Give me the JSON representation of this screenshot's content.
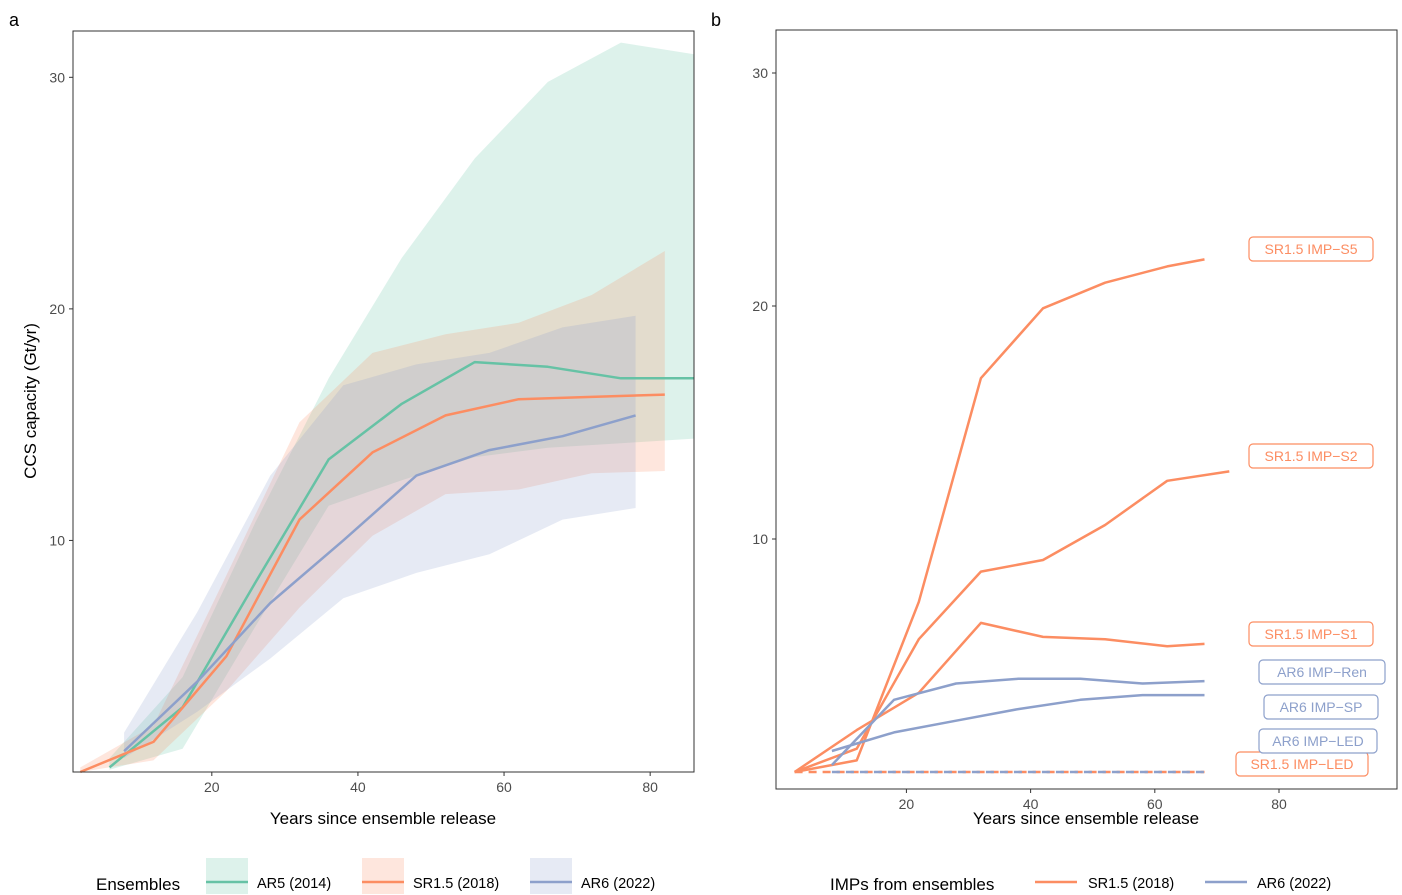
{
  "colors": {
    "AR5 (2014)": "#66c2a5",
    "SR1.5 (2018)": "#fc8d62",
    "AR6 (2022)": "#8da0cb"
  },
  "legend_a": {
    "title": "Ensembles",
    "items": [
      "AR5 (2014)",
      "SR1.5 (2018)",
      "AR6 (2022)"
    ]
  },
  "legend_b": {
    "title": "IMPs from ensembles",
    "items": [
      "SR1.5 (2018)",
      "AR6 (2022)"
    ]
  },
  "chart_data": [
    {
      "panel": "a",
      "type": "line",
      "xlabel": "Years since ensemble release",
      "ylabel": "CCS capacity (Gt/yr)",
      "xlim": [
        1,
        86
      ],
      "ylim": [
        0,
        32
      ],
      "xticks": [
        20,
        40,
        60,
        80
      ],
      "yticks": [
        10,
        20,
        30
      ],
      "grid": false,
      "legend_position": "bottom",
      "series": [
        {
          "name": "AR5 (2014)",
          "median": [
            [
              6,
              0.2
            ],
            [
              16,
              2.8
            ],
            [
              26,
              8.2
            ],
            [
              36,
              13.5
            ],
            [
              46,
              15.9
            ],
            [
              56,
              17.7
            ],
            [
              66,
              17.5
            ],
            [
              76,
              17.0
            ],
            [
              86,
              17.0
            ]
          ],
          "upper": [
            [
              6,
              0.6
            ],
            [
              16,
              4.1
            ],
            [
              26,
              10.8
            ],
            [
              36,
              17.0
            ],
            [
              46,
              22.2
            ],
            [
              56,
              26.5
            ],
            [
              66,
              29.8
            ],
            [
              76,
              31.5
            ],
            [
              86,
              31.0
            ]
          ],
          "lower": [
            [
              6,
              0.1
            ],
            [
              16,
              1.0
            ],
            [
              26,
              6.3
            ],
            [
              36,
              11.5
            ],
            [
              46,
              12.6
            ],
            [
              56,
              13.6
            ],
            [
              66,
              14.0
            ],
            [
              76,
              14.2
            ],
            [
              86,
              14.4
            ]
          ]
        },
        {
          "name": "SR1.5 (2018)",
          "median": [
            [
              2,
              0.0
            ],
            [
              12,
              1.3
            ],
            [
              22,
              5.0
            ],
            [
              32,
              10.9
            ],
            [
              42,
              13.8
            ],
            [
              52,
              15.4
            ],
            [
              62,
              16.1
            ],
            [
              72,
              16.2
            ],
            [
              82,
              16.3
            ]
          ],
          "upper": [
            [
              2,
              0.2
            ],
            [
              12,
              2.0
            ],
            [
              22,
              8.5
            ],
            [
              32,
              15.1
            ],
            [
              42,
              18.1
            ],
            [
              52,
              18.9
            ],
            [
              62,
              19.4
            ],
            [
              72,
              20.6
            ],
            [
              82,
              22.5
            ]
          ],
          "lower": [
            [
              2,
              0.0
            ],
            [
              12,
              0.5
            ],
            [
              22,
              3.5
            ],
            [
              32,
              7.1
            ],
            [
              42,
              10.2
            ],
            [
              52,
              12.0
            ],
            [
              62,
              12.2
            ],
            [
              72,
              12.9
            ],
            [
              82,
              13.0
            ]
          ]
        },
        {
          "name": "AR6 (2022)",
          "median": [
            [
              8,
              0.9
            ],
            [
              18,
              3.9
            ],
            [
              28,
              7.3
            ],
            [
              38,
              10.0
            ],
            [
              48,
              12.8
            ],
            [
              58,
              13.9
            ],
            [
              68,
              14.5
            ],
            [
              78,
              15.4
            ]
          ],
          "upper": [
            [
              8,
              1.7
            ],
            [
              18,
              6.9
            ],
            [
              28,
              12.8
            ],
            [
              38,
              16.7
            ],
            [
              48,
              17.6
            ],
            [
              58,
              18.1
            ],
            [
              68,
              19.2
            ],
            [
              78,
              19.7
            ]
          ],
          "lower": [
            [
              8,
              0.6
            ],
            [
              18,
              2.6
            ],
            [
              28,
              4.9
            ],
            [
              38,
              7.5
            ],
            [
              48,
              8.6
            ],
            [
              58,
              9.4
            ],
            [
              68,
              10.9
            ],
            [
              78,
              11.4
            ]
          ]
        }
      ]
    },
    {
      "panel": "b",
      "type": "line",
      "xlabel": "Years since ensemble release",
      "xlim": [
        -1,
        99
      ],
      "ylim": [
        0,
        32
      ],
      "xticks": [
        20,
        40,
        60,
        80
      ],
      "yticks": [
        10,
        20,
        30
      ],
      "grid": false,
      "legend_position": "bottom",
      "series": [
        {
          "name": "SR1.5 IMP-S5",
          "group": "SR1.5 (2018)",
          "label": "SR1.5 IMP−S5",
          "dashed": false,
          "points": [
            [
              2,
              0.0
            ],
            [
              12,
              0.5
            ],
            [
              22,
              7.3
            ],
            [
              32,
              16.9
            ],
            [
              42,
              19.9
            ],
            [
              52,
              21.0
            ],
            [
              62,
              21.7
            ],
            [
              68,
              22.0
            ]
          ]
        },
        {
          "name": "SR1.5 IMP-S2",
          "group": "SR1.5 (2018)",
          "label": "SR1.5 IMP−S2",
          "dashed": false,
          "points": [
            [
              2,
              0.0
            ],
            [
              12,
              1.0
            ],
            [
              22,
              5.7
            ],
            [
              32,
              8.6
            ],
            [
              42,
              9.1
            ],
            [
              52,
              10.6
            ],
            [
              62,
              12.5
            ],
            [
              72,
              12.9
            ]
          ]
        },
        {
          "name": "SR1.5 IMP-S1",
          "group": "SR1.5 (2018)",
          "label": "SR1.5 IMP−S1",
          "dashed": false,
          "points": [
            [
              2,
              0.0
            ],
            [
              12,
              1.8
            ],
            [
              22,
              3.4
            ],
            [
              32,
              6.4
            ],
            [
              42,
              5.8
            ],
            [
              52,
              5.7
            ],
            [
              62,
              5.4
            ],
            [
              68,
              5.5
            ]
          ]
        },
        {
          "name": "SR1.5 IMP-LED",
          "group": "SR1.5 (2018)",
          "label": "SR1.5 IMP−LED",
          "dashed": true,
          "points": [
            [
              2,
              0.0
            ],
            [
              68,
              0.0
            ]
          ]
        },
        {
          "name": "AR6 IMP-Ren",
          "group": "AR6 (2022)",
          "label": "AR6 IMP−Ren",
          "dashed": false,
          "points": [
            [
              8,
              0.3
            ],
            [
              18,
              3.1
            ],
            [
              28,
              3.8
            ],
            [
              38,
              4.0
            ],
            [
              48,
              4.0
            ],
            [
              58,
              3.8
            ],
            [
              68,
              3.9
            ]
          ]
        },
        {
          "name": "AR6 IMP-SP",
          "group": "AR6 (2022)",
          "label": "AR6 IMP−SP",
          "dashed": false,
          "points": [
            [
              8,
              0.9
            ],
            [
              18,
              1.7
            ],
            [
              28,
              2.2
            ],
            [
              38,
              2.7
            ],
            [
              48,
              3.1
            ],
            [
              58,
              3.3
            ],
            [
              68,
              3.3
            ]
          ]
        },
        {
          "name": "AR6 IMP-LED",
          "group": "AR6 (2022)",
          "label": "AR6 IMP−LED",
          "dashed": true,
          "points": [
            [
              8,
              0.0
            ],
            [
              68,
              0.0
            ]
          ]
        }
      ]
    }
  ],
  "panels": {
    "a": "a",
    "b": "b"
  }
}
